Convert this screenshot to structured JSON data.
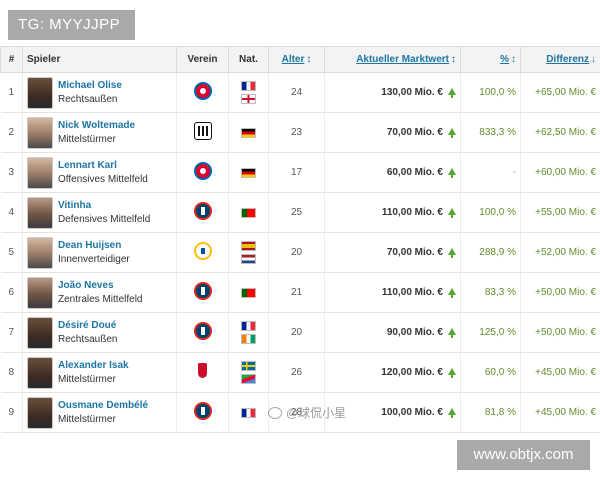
{
  "overlay": {
    "tg_label": "TG: MYYJJPP",
    "site_url": "www.obtjx.com",
    "watermark": "@球侃小星"
  },
  "table": {
    "headers": {
      "rank": "#",
      "player": "Spieler",
      "club": "Verein",
      "nationality": "Nat.",
      "age": "Alter",
      "market_value": "Aktueller Marktwert",
      "percent": "%",
      "difference": "Differenz"
    },
    "sort_icons": {
      "age": "↕",
      "market_value": "↕",
      "percent": "↕",
      "difference": "↓"
    },
    "rows": [
      {
        "rank": "1",
        "name": "Michael Olise",
        "position": "Rechtsaußen",
        "club_icon": "bayern",
        "flags": [
          "fr",
          "en"
        ],
        "age": "24",
        "value": "130,00 Mio. €",
        "percent": "100,0 %",
        "diff": "+65,00 Mio. €"
      },
      {
        "rank": "2",
        "name": "Nick Woltemade",
        "position": "Mittelstürmer",
        "club_icon": "newcastle",
        "flags": [
          "de"
        ],
        "age": "23",
        "value": "70,00 Mio. €",
        "percent": "833,3 %",
        "diff": "+62,50 Mio. €"
      },
      {
        "rank": "3",
        "name": "Lennart Karl",
        "position": "Offensives Mittelfeld",
        "club_icon": "bayern",
        "flags": [
          "de"
        ],
        "age": "17",
        "value": "60,00 Mio. €",
        "percent": "-",
        "diff": "+60,00 Mio. €"
      },
      {
        "rank": "4",
        "name": "Vitinha",
        "position": "Defensives Mittelfeld",
        "club_icon": "psg",
        "flags": [
          "pt"
        ],
        "age": "25",
        "value": "110,00 Mio. €",
        "percent": "100,0 %",
        "diff": "+55,00 Mio. €"
      },
      {
        "rank": "5",
        "name": "Dean Huijsen",
        "position": "Innenverteidiger",
        "club_icon": "real",
        "flags": [
          "es",
          "nl"
        ],
        "age": "20",
        "value": "70,00 Mio. €",
        "percent": "288,9 %",
        "diff": "+52,00 Mio. €"
      },
      {
        "rank": "6",
        "name": "João Neves",
        "position": "Zentrales Mittelfeld",
        "club_icon": "psg",
        "flags": [
          "pt"
        ],
        "age": "21",
        "value": "110,00 Mio. €",
        "percent": "83,3 %",
        "diff": "+50,00 Mio. €"
      },
      {
        "rank": "7",
        "name": "Désiré Doué",
        "position": "Rechtsaußen",
        "club_icon": "psg",
        "flags": [
          "fr",
          "ci"
        ],
        "age": "20",
        "value": "90,00 Mio. €",
        "percent": "125,0 %",
        "diff": "+50,00 Mio. €"
      },
      {
        "rank": "8",
        "name": "Alexander Isak",
        "position": "Mittelstürmer",
        "club_icon": "liverpool",
        "flags": [
          "se",
          "er"
        ],
        "age": "26",
        "value": "120,00 Mio. €",
        "percent": "60,0 %",
        "diff": "+45,00 Mio. €"
      },
      {
        "rank": "9",
        "name": "Ousmane Dembélé",
        "position": "Mittelstürmer",
        "club_icon": "psg",
        "flags": [
          "fr"
        ],
        "age": "28",
        "value": "100,00 Mio. €",
        "percent": "81,8 %",
        "diff": "+45,00 Mio. €"
      }
    ]
  },
  "colors": {
    "link": "#1d75a3",
    "increase": "#55a630",
    "header_bg": "#f3f3f3"
  }
}
